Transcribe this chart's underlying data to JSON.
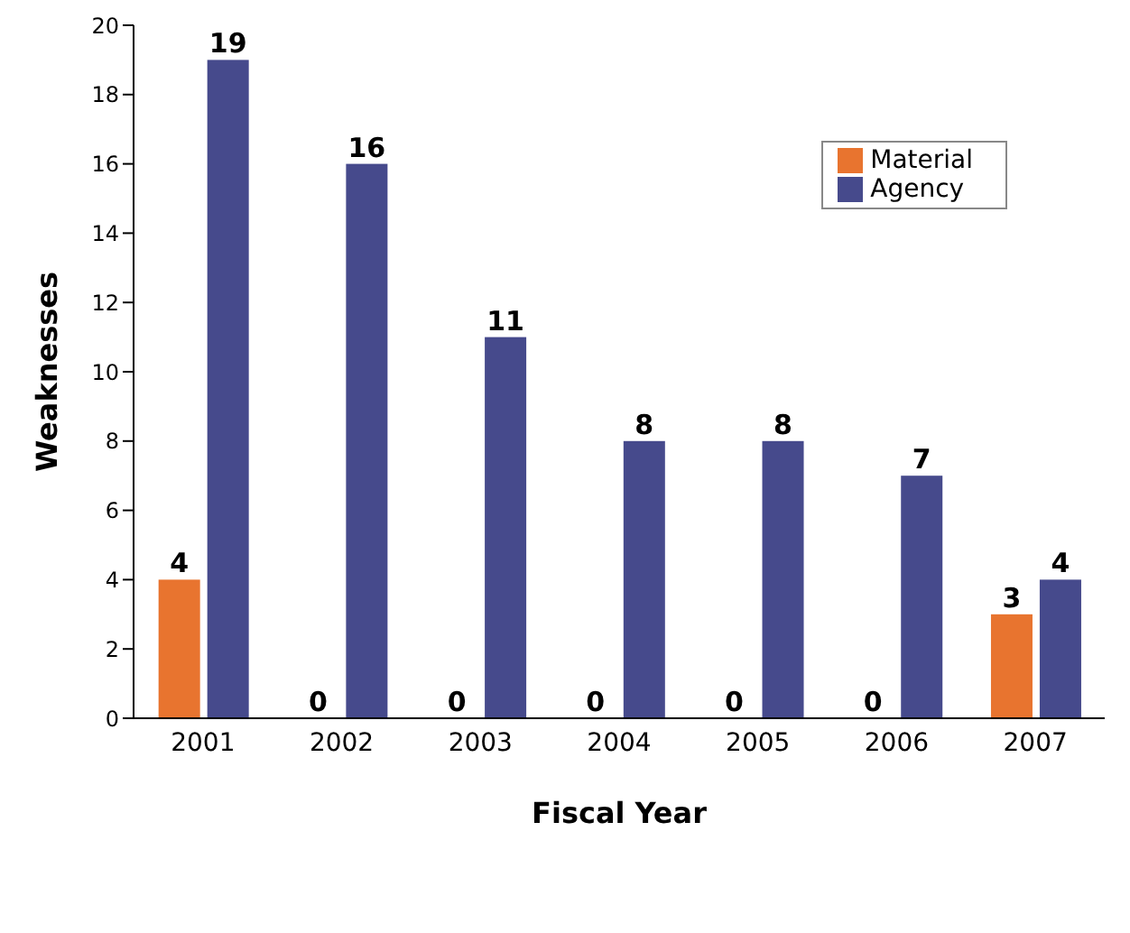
{
  "chart_data": {
    "type": "bar",
    "xlabel": "Fiscal Year",
    "ylabel": "Weaknesses",
    "categories": [
      "2001",
      "2002",
      "2003",
      "2004",
      "2005",
      "2006",
      "2007"
    ],
    "series": [
      {
        "name": "Material",
        "color": "#e8742f",
        "values": [
          4,
          0,
          0,
          0,
          0,
          0,
          3
        ]
      },
      {
        "name": "Agency",
        "color": "#464a8c",
        "values": [
          19,
          16,
          11,
          8,
          8,
          7,
          4
        ]
      }
    ],
    "ylim": [
      0,
      20
    ],
    "yticks": [
      0,
      2,
      4,
      6,
      8,
      10,
      12,
      14,
      16,
      18,
      20
    ],
    "grid": false,
    "legend": "top right",
    "data_labels": true
  }
}
